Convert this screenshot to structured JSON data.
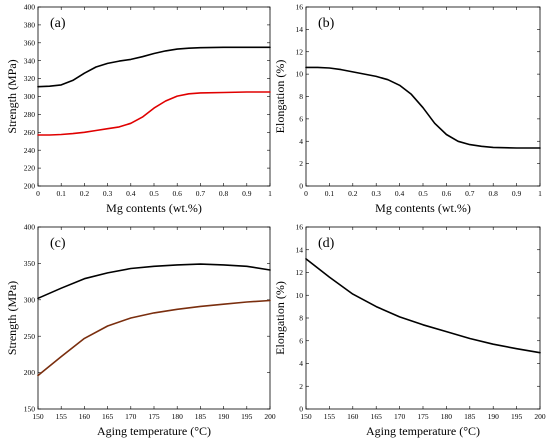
{
  "chart_data": [
    {
      "type": "line",
      "panel": "(a)",
      "xlabel": "Mg contents (wt.%)",
      "ylabel": "Strength (MPa)",
      "xlim": [
        0,
        1
      ],
      "ylim": [
        200,
        400
      ],
      "xticks": [
        "0",
        "0.1",
        "0.2",
        "0.3",
        "0.4",
        "0.5",
        "0.6",
        "0.7",
        "0.8",
        "0.9",
        "1"
      ],
      "yticks": [
        "200",
        "220",
        "240",
        "260",
        "280",
        "300",
        "320",
        "340",
        "360",
        "380",
        "400"
      ],
      "series": [
        {
          "color": "#000000",
          "x": [
            0,
            0.05,
            0.1,
            0.15,
            0.2,
            0.25,
            0.3,
            0.35,
            0.4,
            0.45,
            0.5,
            0.55,
            0.6,
            0.65,
            0.7,
            0.8,
            0.9,
            1.0
          ],
          "y": [
            311,
            311.5,
            313,
            318,
            326,
            333,
            337,
            339.5,
            341.5,
            344.5,
            348,
            351,
            353,
            354,
            354.5,
            355,
            355,
            355
          ]
        },
        {
          "color": "#e00000",
          "x": [
            0,
            0.05,
            0.1,
            0.15,
            0.2,
            0.25,
            0.3,
            0.35,
            0.4,
            0.45,
            0.5,
            0.55,
            0.6,
            0.65,
            0.7,
            0.8,
            0.9,
            1.0
          ],
          "y": [
            257,
            257,
            257.5,
            258.5,
            260,
            262,
            264,
            266,
            270,
            277,
            287,
            295,
            300.5,
            303,
            304,
            304.5,
            305,
            305
          ]
        }
      ]
    },
    {
      "type": "line",
      "panel": "(b)",
      "xlabel": "Mg contents (wt.%)",
      "ylabel": "Elongation (%)",
      "xlim": [
        0,
        1
      ],
      "ylim": [
        0,
        16
      ],
      "xticks": [
        "0",
        "0.1",
        "0.2",
        "0.3",
        "0.4",
        "0.5",
        "0.6",
        "0.7",
        "0.8",
        "0.9",
        "1"
      ],
      "yticks": [
        "0",
        "2",
        "4",
        "6",
        "8",
        "10",
        "12",
        "14",
        "16"
      ],
      "series": [
        {
          "color": "#000000",
          "x": [
            0,
            0.05,
            0.1,
            0.15,
            0.2,
            0.25,
            0.3,
            0.35,
            0.4,
            0.45,
            0.5,
            0.55,
            0.6,
            0.65,
            0.7,
            0.75,
            0.8,
            0.9,
            1.0
          ],
          "y": [
            10.6,
            10.6,
            10.55,
            10.4,
            10.2,
            10.0,
            9.8,
            9.5,
            9.0,
            8.2,
            7.0,
            5.6,
            4.6,
            4.0,
            3.7,
            3.55,
            3.45,
            3.4,
            3.4
          ]
        }
      ]
    },
    {
      "type": "line",
      "panel": "(c)",
      "xlabel": "Aging temperature (°C)",
      "ylabel": "Strength (MPa)",
      "xlim": [
        150,
        200
      ],
      "ylim": [
        150,
        400
      ],
      "xticks": [
        "150",
        "155",
        "160",
        "165",
        "170",
        "175",
        "180",
        "185",
        "190",
        "195",
        "200"
      ],
      "yticks": [
        "150",
        "200",
        "250",
        "300",
        "350",
        "400"
      ],
      "series": [
        {
          "color": "#000000",
          "x": [
            150,
            155,
            160,
            165,
            170,
            175,
            180,
            185,
            190,
            195,
            200
          ],
          "y": [
            302,
            316,
            329,
            337,
            343,
            346,
            348,
            349,
            348,
            346,
            341
          ]
        },
        {
          "color": "#7a2e0e",
          "x": [
            150,
            155,
            160,
            165,
            170,
            175,
            180,
            185,
            190,
            195,
            200
          ],
          "y": [
            196,
            222,
            247,
            264,
            275,
            282,
            287,
            291,
            294,
            297,
            299
          ]
        }
      ]
    },
    {
      "type": "line",
      "panel": "(d)",
      "xlabel": "Aging temperature (°C)",
      "ylabel": "Elongation (%)",
      "xlim": [
        150,
        200
      ],
      "ylim": [
        0,
        16
      ],
      "xticks": [
        "150",
        "155",
        "160",
        "165",
        "170",
        "175",
        "180",
        "185",
        "190",
        "195",
        "200"
      ],
      "yticks": [
        "0",
        "2",
        "4",
        "6",
        "8",
        "10",
        "12",
        "14",
        "16"
      ],
      "series": [
        {
          "color": "#000000",
          "x": [
            150,
            155,
            160,
            165,
            170,
            175,
            180,
            185,
            190,
            195,
            200
          ],
          "y": [
            13.2,
            11.6,
            10.1,
            9.0,
            8.1,
            7.4,
            6.8,
            6.2,
            5.7,
            5.3,
            4.95
          ]
        }
      ]
    }
  ]
}
